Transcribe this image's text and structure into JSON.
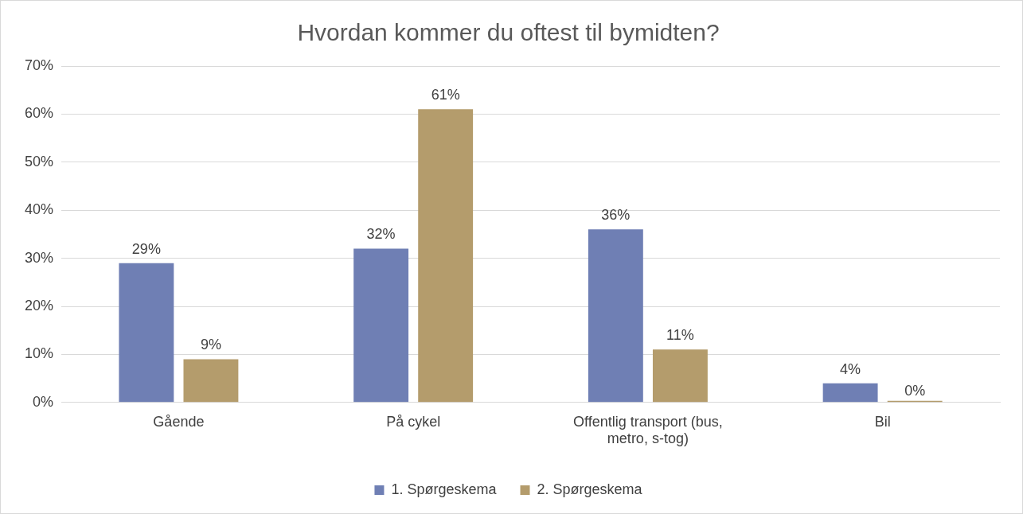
{
  "chart_data": {
    "type": "bar",
    "title": "Hvordan kommer du oftest til bymidten?",
    "categories": [
      "Gående",
      "På cykel",
      "Offentlig transport (bus, metro, s-tog)",
      "Bil"
    ],
    "series": [
      {
        "name": "1. Spørgeskema",
        "color": "#6f7fb4",
        "values": [
          29,
          32,
          36,
          4
        ],
        "value_labels": [
          "29%",
          "32%",
          "36%",
          "4%"
        ]
      },
      {
        "name": "2. Spørgeskema",
        "color": "#b49c6c",
        "values": [
          9,
          61,
          11,
          0
        ],
        "value_labels": [
          "9%",
          "61%",
          "11%",
          "0%"
        ]
      }
    ],
    "ylim": [
      0,
      70
    ],
    "yticks": [
      {
        "value": 0,
        "label": "0%"
      },
      {
        "value": 10,
        "label": "10%"
      },
      {
        "value": 20,
        "label": "20%"
      },
      {
        "value": 30,
        "label": "30%"
      },
      {
        "value": 40,
        "label": "40%"
      },
      {
        "value": 50,
        "label": "50%"
      },
      {
        "value": 60,
        "label": "60%"
      },
      {
        "value": 70,
        "label": "70%"
      }
    ],
    "grid": "y",
    "legend": "bottom"
  }
}
